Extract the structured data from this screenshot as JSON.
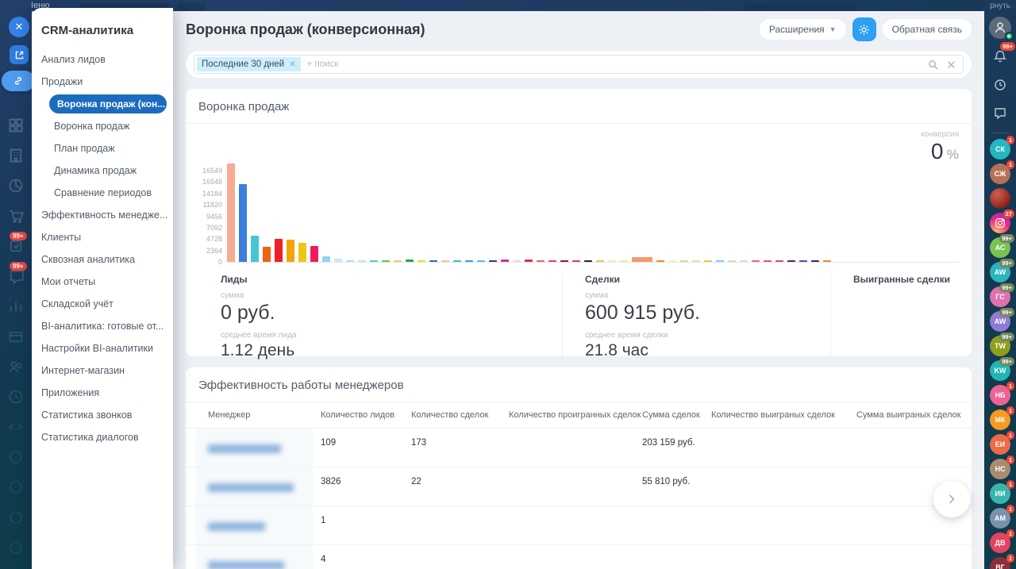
{
  "topbar": {
    "menu_label": "Меню"
  },
  "flyout": {
    "title": "CRM-аналитика",
    "items": [
      {
        "label": "Анализ лидов"
      },
      {
        "label": "Продажи"
      },
      {
        "label": "Воронка продаж (кон...",
        "active": true
      },
      {
        "label": "Воронка продаж",
        "indent": true
      },
      {
        "label": "План продаж",
        "indent": true
      },
      {
        "label": "Динамика продаж",
        "indent": true
      },
      {
        "label": "Сравнение периодов",
        "indent": true
      },
      {
        "label": "Эффективность менедже..."
      },
      {
        "label": "Клиенты"
      },
      {
        "label": "Сквозная аналитика"
      },
      {
        "label": "Мои отчеты"
      },
      {
        "label": "Складской учёт"
      },
      {
        "label": "BI-аналитика: готовые от..."
      },
      {
        "label": "Настройки BI-аналитики"
      },
      {
        "label": "Интернет-магазин"
      },
      {
        "label": "Приложения"
      },
      {
        "label": "Статистика звонков"
      },
      {
        "label": "Статистика диалогов"
      }
    ]
  },
  "header": {
    "title": "Воронка продаж (конверсионная)",
    "extensions_label": "Расширения",
    "feedback_label": "Обратная связь"
  },
  "filter": {
    "chip": "Последние 30 дней",
    "placeholder": "+ поиск"
  },
  "funnel_card": {
    "title": "Воронка продаж",
    "conversion_label": "конверсия",
    "conversion_value": "0",
    "conversion_unit": "%"
  },
  "chart_data": {
    "type": "bar",
    "title": "Воронка продаж",
    "xlabel": "",
    "ylabel": "",
    "x_labels": "none",
    "y_ticks": [
      16549,
      16548,
      14184,
      11820,
      9456,
      7092,
      4728,
      2364,
      0
    ],
    "ylim": [
      0,
      17700
    ],
    "legend": "none",
    "bars": [
      {
        "v": 17500,
        "c": "#f7ab91"
      },
      {
        "v": 13900,
        "c": "#3c7edd"
      },
      {
        "v": 4650,
        "c": "#49c3d6"
      },
      {
        "v": 2650,
        "c": "#ec6414"
      },
      {
        "v": 4100,
        "c": "#ee2126"
      },
      {
        "v": 4000,
        "c": "#f5a30d"
      },
      {
        "v": 3400,
        "c": "#ecc713"
      },
      {
        "v": 2850,
        "c": "#ee1b5f"
      },
      {
        "v": 1050,
        "c": "#8ed5f2"
      },
      {
        "v": 620,
        "c": "#c7eaf9"
      },
      {
        "v": 300,
        "c": "#abdff4"
      },
      {
        "v": 260,
        "c": "#bde8f3"
      },
      {
        "v": 330,
        "c": "#56c6db"
      },
      {
        "v": 350,
        "c": "#6abf49"
      },
      {
        "v": 300,
        "c": "#f2cd68"
      },
      {
        "v": 380,
        "c": "#2f9e57"
      },
      {
        "v": 300,
        "c": "#f5d83a"
      },
      {
        "v": 330,
        "c": "#3f63c5"
      },
      {
        "v": 280,
        "c": "#f6c697"
      },
      {
        "v": 320,
        "c": "#3fbcca"
      },
      {
        "v": 330,
        "c": "#389fd9"
      },
      {
        "v": 310,
        "c": "#57c1e9"
      },
      {
        "v": 350,
        "c": "#32475f"
      },
      {
        "v": 360,
        "c": "#d42b9f"
      },
      {
        "v": 260,
        "c": "#f0d6dc"
      },
      {
        "v": 450,
        "c": "#df3038"
      },
      {
        "v": 300,
        "c": "#e16179"
      },
      {
        "v": 280,
        "c": "#dd4753"
      },
      {
        "v": 300,
        "c": "#8c202c"
      },
      {
        "v": 290,
        "c": "#de4047"
      },
      {
        "v": 280,
        "c": "#2e2428"
      },
      {
        "v": 260,
        "c": "#ecc159"
      },
      {
        "v": 230,
        "c": "#f2ecbe"
      },
      {
        "v": 250,
        "c": "#eeec98"
      },
      {
        "v": 900,
        "c": "#f39a70",
        "w": 26
      },
      {
        "v": 320,
        "c": "#ee8c20"
      },
      {
        "v": 210,
        "c": "#eff2c0"
      },
      {
        "v": 240,
        "c": "#c9e489"
      },
      {
        "v": 230,
        "c": "#dce79e"
      },
      {
        "v": 260,
        "c": "#e7c74d"
      },
      {
        "v": 290,
        "c": "#7ed0e9"
      },
      {
        "v": 240,
        "c": "#cde2c0"
      },
      {
        "v": 250,
        "c": "#f0d1d8"
      },
      {
        "v": 300,
        "c": "#eb5e99"
      },
      {
        "v": 290,
        "c": "#e35973"
      },
      {
        "v": 310,
        "c": "#d84e5b"
      },
      {
        "v": 340,
        "c": "#5e2062"
      },
      {
        "v": 320,
        "c": "#7d3e93"
      },
      {
        "v": 340,
        "c": "#392a65"
      },
      {
        "v": 310,
        "c": "#e8892a"
      }
    ]
  },
  "stats": {
    "leads": {
      "title": "Лиды",
      "sum_label": "сумма",
      "sum_value": "0 руб.",
      "avg_label": "среднее время лида",
      "avg_value": "1.12 день"
    },
    "deals": {
      "title": "Сделки",
      "sum_label": "сумма",
      "sum_value": "600 915 руб.",
      "avg_label": "среднее время сделки",
      "avg_value": "21.8 час"
    },
    "won": {
      "title": "Выигранные сделки"
    }
  },
  "managers_card": {
    "title": "Эффективность работы менеджеров",
    "columns": [
      "Менеджер",
      "Количество лидов",
      "Количество сделок",
      "Количество проигранных сделок",
      "Сумма сделок",
      "Количество выиграных сделок",
      "Сумма выиграных сделок"
    ],
    "rows": [
      {
        "name_w": 92,
        "cells": [
          "109",
          "173",
          "",
          "203 159 руб.",
          "",
          ""
        ]
      },
      {
        "name_w": 108,
        "cells": [
          "3826",
          "22",
          "",
          "55 810 руб.",
          "",
          ""
        ]
      },
      {
        "name_w": 72,
        "cells": [
          "1",
          "",
          "",
          "",
          "",
          ""
        ]
      },
      {
        "name_w": 96,
        "cells": [
          "4",
          "",
          "",
          "",
          "",
          ""
        ]
      }
    ]
  },
  "right_rail": {
    "top_label": "рнуть",
    "tools": [
      {
        "icon": "person"
      },
      {
        "icon": "bell",
        "badge": "99+",
        "badge_style": "red"
      },
      {
        "icon": "history"
      },
      {
        "icon": "chat"
      }
    ],
    "avatars": [
      {
        "initials": "СК",
        "color": "#25b7c0",
        "badge": "1",
        "badge_style": "red"
      },
      {
        "initials": "СЖ",
        "color": "#b77154",
        "badge": "1",
        "badge_style": "red"
      },
      {
        "type": "photo"
      },
      {
        "type": "instagram",
        "badge": "27",
        "badge_style": "red"
      },
      {
        "initials": "АС",
        "color": "#77c34f",
        "badge": "99+",
        "badge_style": "olive"
      },
      {
        "initials": "AW",
        "color": "#2bb4ba",
        "badge": "99+",
        "badge_style": "olive"
      },
      {
        "initials": "ГС",
        "color": "#e170ad",
        "badge": "99+",
        "badge_style": "olive"
      },
      {
        "initials": "AW",
        "color": "#8f7ad6",
        "badge": "99+",
        "badge_style": "olive"
      },
      {
        "initials": "TW",
        "color": "#8f9e1b",
        "badge": "99+",
        "badge_style": "olive"
      },
      {
        "initials": "KW",
        "color": "#1fb6b6",
        "badge": "99+",
        "badge_style": "olive"
      },
      {
        "initials": "НБ",
        "color": "#f06292",
        "badge": "1",
        "badge_style": "red"
      },
      {
        "initials": "МК",
        "color": "#f59a23",
        "badge": "1",
        "badge_style": "red"
      },
      {
        "initials": "ЕИ",
        "color": "#ed6a45",
        "badge": "1",
        "badge_style": "red"
      },
      {
        "initials": "НС",
        "color": "#a98b72",
        "badge": "1",
        "badge_style": "red"
      },
      {
        "initials": "ИИ",
        "color": "#3ab5ac",
        "badge": "1",
        "badge_style": "red"
      },
      {
        "initials": "АМ",
        "color": "#7a93ad",
        "badge": "1",
        "badge_style": "red"
      },
      {
        "initials": "ДВ",
        "color": "#e54360",
        "badge": "1",
        "badge_style": "red"
      },
      {
        "initials": "ВГ",
        "color": "#8c2f39",
        "badge": "1",
        "badge_style": "red"
      }
    ]
  },
  "left_rail": {
    "icons": [
      {
        "icon": "grid"
      },
      {
        "icon": "building"
      },
      {
        "icon": "pie"
      },
      {
        "icon": "cart"
      },
      {
        "icon": "tasks",
        "badge": "99+"
      },
      {
        "icon": "chat",
        "badge": "99+"
      },
      {
        "icon": "bars"
      },
      {
        "icon": "card"
      },
      {
        "icon": "people"
      },
      {
        "icon": "clock"
      },
      {
        "icon": "code"
      },
      {
        "icon": "circle"
      },
      {
        "icon": "circle"
      },
      {
        "icon": "circle"
      },
      {
        "icon": "circle"
      }
    ]
  }
}
